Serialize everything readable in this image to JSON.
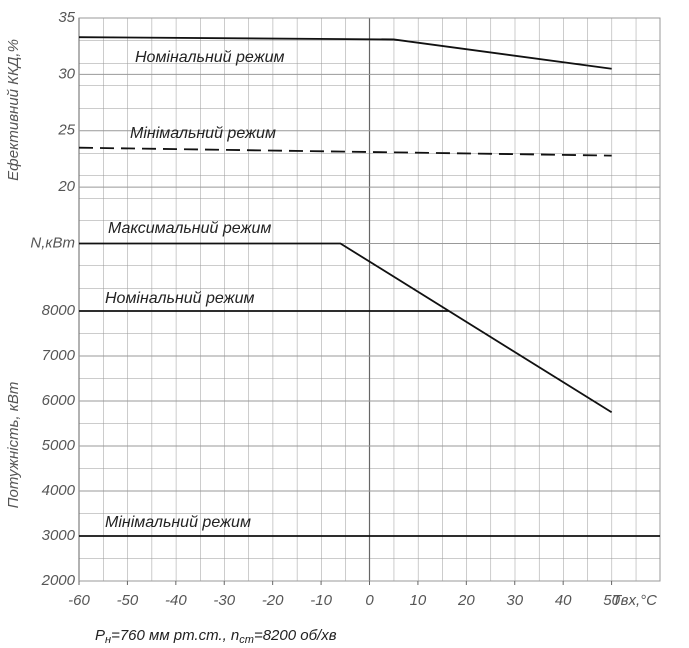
{
  "chart_data": [
    {
      "type": "line",
      "ylabel": "Ефективний ККД,%",
      "xlim": [
        -60,
        60
      ],
      "ylim": [
        17,
        35
      ],
      "yticks": [
        20,
        25,
        30,
        35
      ],
      "series": [
        {
          "name": "Номінальний режим",
          "color": "#111111",
          "dash": false,
          "x": [
            -60,
            5,
            50
          ],
          "values": [
            33.3,
            33.1,
            30.5
          ]
        },
        {
          "name": "Мінімальний режим",
          "color": "#111111",
          "dash": true,
          "x": [
            -60,
            50
          ],
          "values": [
            23.5,
            22.8
          ]
        }
      ]
    },
    {
      "type": "line",
      "ylabel": "Потужність, кВт",
      "xlabel": "Твх,°C",
      "xlim": [
        -60,
        60
      ],
      "xticks": [
        -60,
        -50,
        -40,
        -30,
        -20,
        -10,
        0,
        10,
        20,
        30,
        40,
        50
      ],
      "ylim": [
        2000,
        10000
      ],
      "yticks": [
        2000,
        3000,
        4000,
        5000,
        6000,
        7000,
        8000,
        {
          "value": 9500,
          "label": "N,кВт"
        }
      ],
      "series": [
        {
          "name": "Максимальний режим",
          "color": "#111111",
          "dash": false,
          "x": [
            -60,
            -6,
            50
          ],
          "values": [
            9500,
            9500,
            5750
          ]
        },
        {
          "name": "Номінальний режим",
          "color": "#111111",
          "dash": false,
          "x": [
            -60,
            16.5
          ],
          "values": [
            8000,
            8000
          ]
        },
        {
          "name": "Мінімальний режим",
          "color": "#111111",
          "dash": false,
          "x": [
            -60,
            60
          ],
          "values": [
            3000,
            3000
          ]
        }
      ],
      "note": [
        "P",
        "н",
        "=760 мм рт.ст., n",
        "ст",
        "=8200 об/хв"
      ]
    }
  ]
}
